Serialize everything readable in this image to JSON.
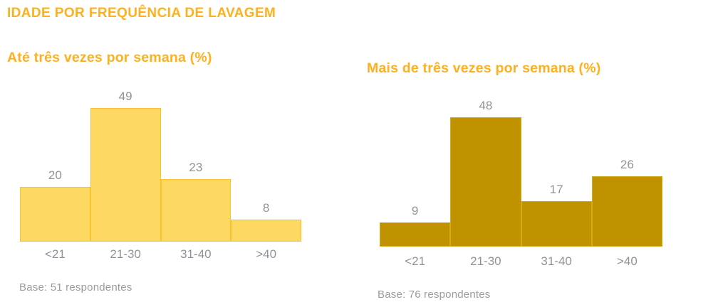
{
  "page": {
    "title": "IDADE POR FREQUÊNCIA DE LAVAGEM"
  },
  "theme": {
    "heading_color": "#FFB01E",
    "label_gray": "#8F9399"
  },
  "chart_data": [
    {
      "type": "bar",
      "title": "Até três vezes por semana (%)",
      "categories": [
        "<21",
        "21-30",
        "31-40",
        ">40"
      ],
      "values": [
        20,
        49,
        23,
        8
      ],
      "unit": "%",
      "ylim": [
        0,
        49
      ],
      "grid": false,
      "legend": false,
      "data_labels": true,
      "bar_fill": "#FDD964",
      "bar_border": "#FFC12B",
      "base_note": "Base: 51 respondentes"
    },
    {
      "type": "bar",
      "title": "Mais de três vezes por semana (%)",
      "categories": [
        "<21",
        "21-30",
        "31-40",
        ">40"
      ],
      "values": [
        9,
        48,
        17,
        26
      ],
      "unit": "%",
      "ylim": [
        0,
        48
      ],
      "grid": false,
      "legend": false,
      "data_labels": true,
      "bar_fill": "#C09200",
      "bar_border": "#D6A918",
      "base_note": "Base: 76 respondentes"
    }
  ]
}
